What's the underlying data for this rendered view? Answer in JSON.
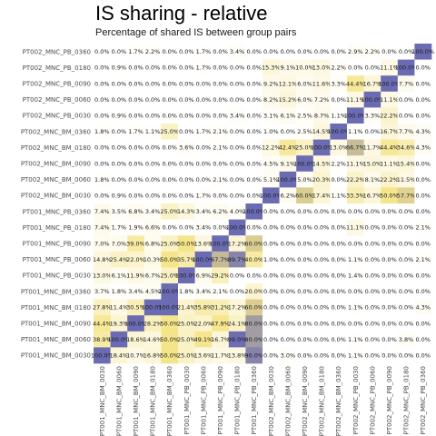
{
  "chart_data": {
    "type": "heatmap",
    "title": "IS sharing - relative",
    "subtitle": "Percentage of shared IS between group pairs",
    "row_labels": [
      "PT002_MNC_PB_0360",
      "PT002_MNC_PB_0180",
      "PT002_MNC_PB_0090",
      "PT002_MNC_PB_0060",
      "PT002_MNC_PB_0030",
      "PT002_MNC_BM_0360",
      "PT002_MNC_BM_0180",
      "PT002_MNC_BM_0090",
      "PT002_MNC_BM_0060",
      "PT002_MNC_BM_0030",
      "PT001_MNC_PB_0360",
      "PT001_MNC_PB_0180",
      "PT001_MNC_PB_0090",
      "PT001_MNC_PB_0060",
      "PT001_MNC_PB_0030",
      "PT001_MNC_BM_0360",
      "PT001_MNC_BM_0180",
      "PT001_MNC_BM_0090",
      "PT001_MNC_BM_0060",
      "PT001_MNC_BM_0030"
    ],
    "col_labels": [
      "PT001_MNC_BM_0030",
      "PT001_MNC_BM_0060",
      "PT001_MNC_BM_0090",
      "PT001_MNC_BM_0180",
      "PT001_MNC_BM_0360",
      "PT001_MNC_PB_0030",
      "PT001_MNC_PB_0060",
      "PT001_MNC_PB_0090",
      "PT001_MNC_PB_0180",
      "PT001_MNC_PB_0360",
      "PT002_MNC_BM_0030",
      "PT002_MNC_BM_0060",
      "PT002_MNC_BM_0090",
      "PT002_MNC_BM_0180",
      "PT002_MNC_BM_0360",
      "PT002_MNC_PB_0030",
      "PT002_MNC_PB_0060",
      "PT002_MNC_PB_0090",
      "PT002_MNC_PB_0180",
      "PT002_MNC_PB_0360"
    ],
    "values": [
      [
        0.0,
        0.0,
        1.7,
        2.2,
        0.0,
        0.0,
        1.7,
        0.0,
        3.4,
        0.0,
        0.0,
        0.0,
        0.0,
        0.0,
        0.0,
        2.9,
        2.2,
        0.0,
        0.0,
        100.0
      ],
      [
        0.0,
        0.9,
        0.0,
        0.0,
        0.0,
        0.0,
        1.7,
        0.0,
        0.0,
        0.0,
        15.3,
        9.1,
        10.0,
        13.0,
        2.2,
        0.0,
        0.0,
        11.1,
        100.0,
        0.0
      ],
      [
        0.0,
        0.0,
        0.0,
        0.0,
        0.0,
        0.0,
        0.0,
        0.0,
        0.0,
        0.0,
        9.2,
        12.1,
        6.0,
        11.6,
        3.3,
        44.4,
        16.7,
        100.0,
        7.7,
        0.0
      ],
      [
        0.0,
        0.0,
        0.0,
        0.0,
        0.0,
        0.0,
        0.0,
        0.0,
        0.0,
        0.0,
        8.2,
        15.2,
        6.0,
        7.2,
        0.0,
        11.1,
        100.0,
        11.1,
        0.0,
        0.0
      ],
      [
        0.0,
        0.9,
        0.0,
        0.0,
        0.0,
        0.0,
        0.0,
        0.0,
        3.4,
        0.0,
        3.1,
        6.1,
        2.5,
        8.7,
        1.1,
        100.0,
        3.3,
        22.2,
        0.0,
        0.0
      ],
      [
        1.8,
        0.0,
        1.7,
        1.1,
        25.0,
        0.0,
        1.7,
        2.1,
        0.0,
        0.0,
        1.0,
        0.0,
        2.5,
        14.5,
        100.0,
        1.1,
        0.0,
        16.7,
        7.7,
        4.3
      ],
      [
        0.0,
        0.0,
        0.0,
        0.0,
        0.0,
        3.6,
        0.0,
        2.1,
        0.0,
        0.0,
        12.2,
        42.4,
        25.0,
        100.0,
        13.0,
        66.7,
        11.7,
        44.4,
        34.6,
        4.3
      ],
      [
        0.0,
        0.0,
        0.0,
        0.0,
        0.0,
        0.0,
        0.0,
        0.0,
        0.0,
        0.0,
        4.5,
        9.1,
        100.0,
        14.5,
        2.2,
        11.1,
        15.0,
        11.1,
        15.4,
        0.0
      ],
      [
        1.8,
        0.0,
        0.0,
        0.0,
        0.0,
        0.0,
        0.0,
        2.1,
        0.0,
        0.0,
        5.1,
        100.0,
        5.0,
        20.3,
        0.0,
        22.2,
        8.1,
        22.2,
        11.5,
        0.0
      ],
      [
        0.0,
        0.9,
        0.0,
        0.0,
        0.0,
        0.0,
        1.7,
        0.0,
        0.0,
        0.0,
        100.0,
        6.2,
        60.0,
        17.4,
        1.1,
        33.3,
        16.7,
        50.0,
        57.7,
        0.0
      ],
      [
        7.4,
        3.5,
        6.8,
        3.4,
        25.0,
        14.3,
        3.4,
        6.2,
        4.0,
        100.0,
        0.0,
        0.0,
        0.0,
        0.0,
        0.0,
        0.0,
        0.0,
        0.0,
        0.0,
        0.0
      ],
      [
        7.4,
        1.7,
        1.9,
        6.6,
        0.0,
        0.0,
        3.4,
        0.0,
        100.0,
        0.0,
        0.0,
        0.0,
        0.0,
        0.0,
        0.0,
        11.1,
        0.0,
        0.0,
        0.0,
        2.1
      ],
      [
        7.0,
        7.0,
        39.0,
        6.8,
        25.0,
        50.0,
        13.6,
        100.0,
        17.2,
        60.0,
        0.0,
        0.0,
        0.0,
        0.0,
        0.0,
        0.0,
        0.0,
        0.0,
        0.0,
        0.0
      ],
      [
        14.8,
        25.4,
        22.0,
        10.3,
        50.0,
        35.7,
        100.0,
        67.7,
        89.7,
        40.0,
        1.0,
        0.0,
        0.0,
        0.0,
        0.0,
        1.1,
        0.0,
        0.0,
        0.0,
        2.1
      ],
      [
        13.0,
        6.1,
        11.9,
        6.7,
        25.0,
        100.0,
        6.9,
        29.2,
        0.0,
        0.0,
        0.0,
        0.0,
        0.0,
        0.0,
        0.0,
        1.4,
        0.0,
        0.0,
        0.0,
        0.0
      ],
      [
        3.7,
        1.8,
        3.4,
        4.5,
        100.0,
        1.8,
        3.4,
        2.1,
        0.0,
        20.0,
        0.0,
        0.0,
        0.0,
        0.0,
        0.0,
        0.0,
        0.0,
        0.0,
        0.0,
        0.0
      ],
      [
        27.8,
        11.4,
        30.5,
        100.0,
        100.0,
        21.4,
        35.8,
        31.2,
        17.2,
        60.0,
        0.0,
        0.0,
        0.0,
        0.0,
        0.0,
        1.1,
        0.0,
        0.0,
        0.0,
        4.3
      ],
      [
        44.4,
        19.3,
        100.0,
        28.2,
        50.0,
        25.0,
        22.0,
        47.9,
        24.1,
        80.0,
        0.0,
        0.0,
        0.0,
        0.0,
        0.0,
        0.0,
        0.0,
        0.0,
        0.0,
        0.0
      ],
      [
        38.9,
        100.0,
        18.6,
        14.6,
        50.0,
        25.0,
        49.1,
        16.7,
        99.0,
        80.0,
        0.0,
        0.0,
        0.0,
        0.0,
        0.0,
        1.1,
        0.0,
        0.0,
        3.8,
        0.0
      ],
      [
        100.0,
        18.4,
        10.7,
        16.8,
        50.0,
        25.0,
        13.6,
        11.7,
        13.8,
        90.0,
        0.0,
        3.0,
        0.0,
        0.0,
        0.0,
        1.1,
        0.0,
        0.0,
        0.0,
        0.0
      ]
    ],
    "value_suffix": "%",
    "color_scale": {
      "low": "#ffffff",
      "mid": "#f5e58a",
      "high": "#6b6bb3"
    },
    "legend": "none"
  }
}
